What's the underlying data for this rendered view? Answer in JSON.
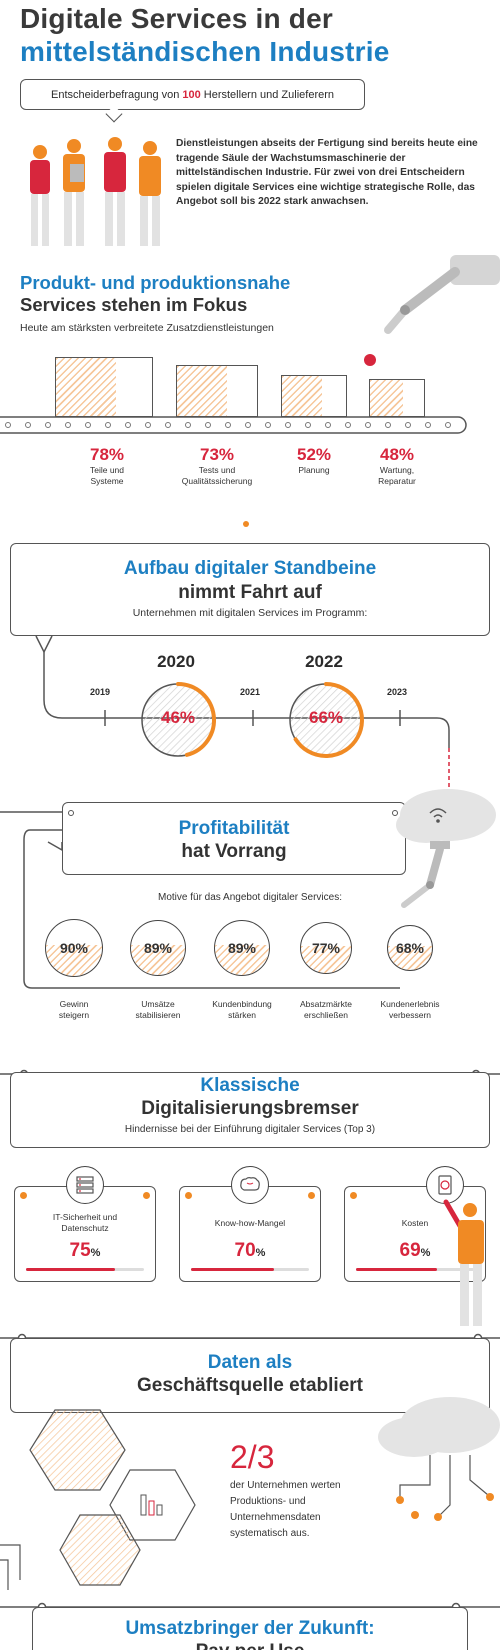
{
  "header": {
    "title_line1": "Digitale Services in der",
    "title_line2": "mittelständischen Industrie"
  },
  "survey": {
    "prefix": "Entscheiderbefragung von",
    "count": "100",
    "suffix": "Herstellern und Zulieferern"
  },
  "intro_text": "Dienstleistungen abseits der Fertigung sind bereits heute eine tragende Säule der Wachstumsmaschinerie der mittelständischen Industrie. Für zwei von drei Entscheidern spielen digitale Services eine wichtige strategische Rolle, das Angebot soll bis 2022 stark anwachsen.",
  "section1": {
    "title_blue": "Produkt- und produktionsnahe",
    "title_dark": "Services stehen im Fokus",
    "subtitle": "Heute am stärksten verbreitete Zusatzdienstleistungen",
    "items": [
      {
        "value": 78,
        "pct": "78%",
        "label1": "Teile und",
        "label2": "Systeme"
      },
      {
        "value": 73,
        "pct": "73%",
        "label1": "Tests und",
        "label2": "Qualitätssicherung"
      },
      {
        "value": 52,
        "pct": "52%",
        "label1": "Planung",
        "label2": ""
      },
      {
        "value": 48,
        "pct": "48%",
        "label1": "Wartung,",
        "label2": "Reparatur"
      }
    ]
  },
  "section2": {
    "title_blue": "Aufbau digitaler Standbeine",
    "title_dark": "nimmt Fahrt auf",
    "subtitle": "Unternehmen mit digitalen Services im Programm:",
    "ticks": [
      "2019",
      "2021",
      "2023"
    ],
    "points": [
      {
        "year": "2020",
        "value": 46,
        "pct": "46%"
      },
      {
        "year": "2022",
        "value": 66,
        "pct": "66%"
      }
    ]
  },
  "section3": {
    "title_blue": "Profitabilität",
    "title_dark": "hat Vorrang",
    "subtitle": "Motive für das Angebot digitaler Services:",
    "items": [
      {
        "value": 90,
        "pct": "90%",
        "label1": "Gewinn",
        "label2": "steigern"
      },
      {
        "value": 89,
        "pct": "89%",
        "label1": "Umsätze",
        "label2": "stabilisieren"
      },
      {
        "value": 89,
        "pct": "89%",
        "label1": "Kundenbindung",
        "label2": "stärken"
      },
      {
        "value": 77,
        "pct": "77%",
        "label1": "Absatzmärkte",
        "label2": "erschließen"
      },
      {
        "value": 68,
        "pct": "68%",
        "label1": "Kundenerlebnis",
        "label2": "verbessern"
      }
    ]
  },
  "section4": {
    "title_blue": "Klassische",
    "title_dark": "Digitalisierungsbremser",
    "subtitle": "Hindernisse bei der Einführung digitaler Services (Top 3)",
    "items": [
      {
        "value": 75,
        "num": "75",
        "unit": "%",
        "label1": "IT-Sicherheit und",
        "label2": "Datenschutz",
        "icon": "server-icon"
      },
      {
        "value": 70,
        "num": "70",
        "unit": "%",
        "label1": "Know-how-Mangel",
        "label2": "",
        "icon": "brain-icon"
      },
      {
        "value": 69,
        "num": "69",
        "unit": "%",
        "label1": "Kosten",
        "label2": "",
        "icon": "money-icon"
      }
    ]
  },
  "section5": {
    "title_blue": "Daten als",
    "title_dark": "Geschäftsquelle etabliert",
    "fraction": "2/3",
    "text": "der Unternehmen werten Produktions- und Unternehmensdaten systematisch aus."
  },
  "section6": {
    "title_blue": "Umsatzbringer der Zukunft:",
    "title_dark": "Pay per Use"
  },
  "colors": {
    "blue": "#1d7fc2",
    "red": "#d7263d",
    "orange": "#f08a24",
    "dark": "#333333"
  }
}
